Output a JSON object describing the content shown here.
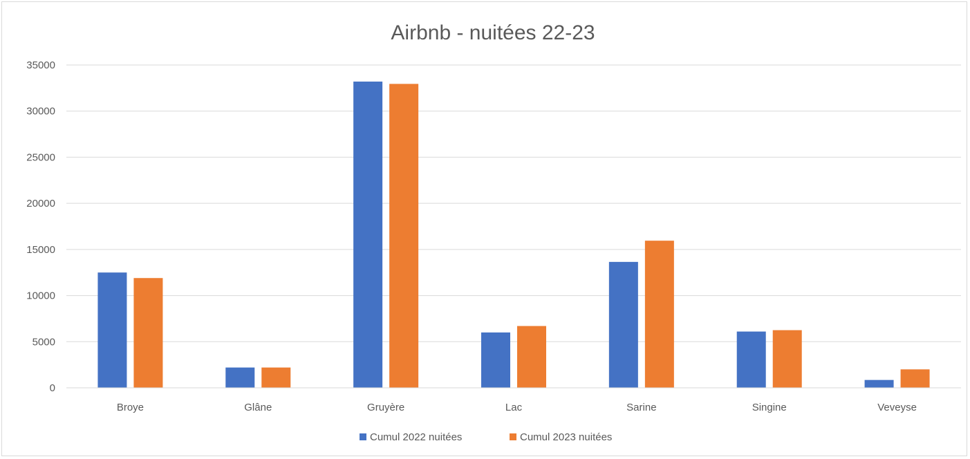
{
  "chart_data": {
    "type": "bar",
    "title": "Airbnb - nuitées 22-23",
    "xlabel": "",
    "ylabel": "",
    "categories": [
      "Broye",
      "Glâne",
      "Gruyère",
      "Lac",
      "Sarine",
      "Singine",
      "Veveyse"
    ],
    "series": [
      {
        "name": "Cumul 2022 nuitées",
        "color": "#4472C4",
        "values": [
          12500,
          2200,
          33200,
          6000,
          13650,
          6100,
          850
        ]
      },
      {
        "name": "Cumul 2023 nuitées",
        "color": "#ED7D31",
        "values": [
          11900,
          2200,
          32950,
          6700,
          15950,
          6250,
          2000
        ]
      }
    ],
    "ylim": [
      0,
      35000
    ],
    "yticks": [
      0,
      5000,
      10000,
      15000,
      20000,
      25000,
      30000,
      35000
    ],
    "grid": true,
    "legend_position": "bottom"
  }
}
